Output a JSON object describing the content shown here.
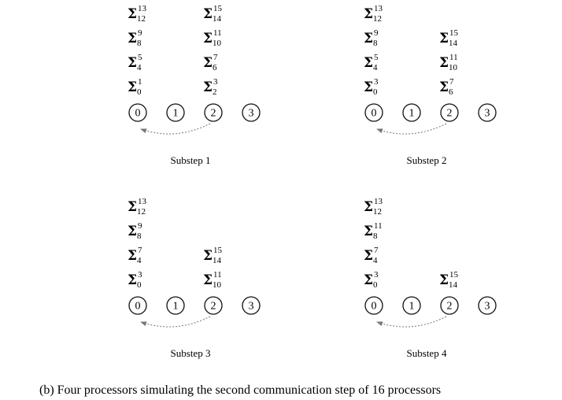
{
  "caption": "(b)  Four processors simulating the second communication step of 16 processors",
  "substeps": [
    {
      "label": "Substep 1",
      "processors": [
        "0",
        "1",
        "2",
        "3"
      ],
      "stacks": [
        [
          {
            "sup": "1",
            "sub": "0"
          },
          {
            "sup": "5",
            "sub": "4"
          },
          {
            "sup": "9",
            "sub": "8"
          },
          {
            "sup": "13",
            "sub": "12"
          }
        ],
        [],
        [
          {
            "sup": "3",
            "sub": "2"
          },
          {
            "sup": "7",
            "sub": "6"
          },
          {
            "sup": "11",
            "sub": "10"
          },
          {
            "sup": "15",
            "sub": "14"
          }
        ],
        []
      ],
      "arrow": {
        "from": 2,
        "to": 0
      }
    },
    {
      "label": "Substep 2",
      "processors": [
        "0",
        "1",
        "2",
        "3"
      ],
      "stacks": [
        [
          {
            "sup": "3",
            "sub": "0"
          },
          {
            "sup": "5",
            "sub": "4"
          },
          {
            "sup": "9",
            "sub": "8"
          },
          {
            "sup": "13",
            "sub": "12"
          }
        ],
        [],
        [
          {
            "sup": "7",
            "sub": "6"
          },
          {
            "sup": "11",
            "sub": "10"
          },
          {
            "sup": "15",
            "sub": "14"
          }
        ],
        []
      ],
      "arrow": {
        "from": 2,
        "to": 0
      }
    },
    {
      "label": "Substep 3",
      "processors": [
        "0",
        "1",
        "2",
        "3"
      ],
      "stacks": [
        [
          {
            "sup": "3",
            "sub": "0"
          },
          {
            "sup": "7",
            "sub": "4"
          },
          {
            "sup": "9",
            "sub": "8"
          },
          {
            "sup": "13",
            "sub": "12"
          }
        ],
        [],
        [
          {
            "sup": "11",
            "sub": "10"
          },
          {
            "sup": "15",
            "sub": "14"
          }
        ],
        []
      ],
      "arrow": {
        "from": 2,
        "to": 0
      }
    },
    {
      "label": "Substep 4",
      "processors": [
        "0",
        "1",
        "2",
        "3"
      ],
      "stacks": [
        [
          {
            "sup": "3",
            "sub": "0"
          },
          {
            "sup": "7",
            "sub": "4"
          },
          {
            "sup": "11",
            "sub": "8"
          },
          {
            "sup": "13",
            "sub": "12"
          }
        ],
        [],
        [
          {
            "sup": "15",
            "sub": "14"
          }
        ],
        []
      ],
      "arrow": {
        "from": 2,
        "to": 0
      }
    }
  ]
}
